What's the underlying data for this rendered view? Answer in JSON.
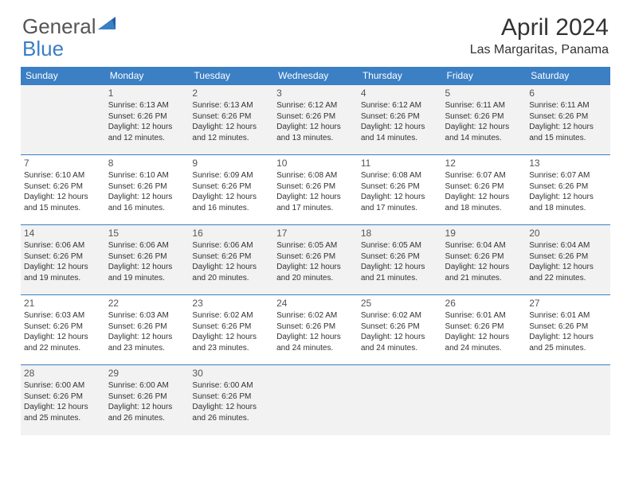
{
  "brand": {
    "part1": "General",
    "part2": "Blue"
  },
  "title": "April 2024",
  "location": "Las Margaritas, Panama",
  "colors": {
    "header_bg": "#3b7fc4",
    "header_text": "#ffffff",
    "rule": "#3b7fc4",
    "shade_bg": "#f2f2f2",
    "text": "#333333"
  },
  "weekdays": [
    "Sunday",
    "Monday",
    "Tuesday",
    "Wednesday",
    "Thursday",
    "Friday",
    "Saturday"
  ],
  "weeks": [
    [
      null,
      {
        "n": "1",
        "sr": "Sunrise: 6:13 AM",
        "ss": "Sunset: 6:26 PM",
        "d1": "Daylight: 12 hours",
        "d2": "and 12 minutes."
      },
      {
        "n": "2",
        "sr": "Sunrise: 6:13 AM",
        "ss": "Sunset: 6:26 PM",
        "d1": "Daylight: 12 hours",
        "d2": "and 12 minutes."
      },
      {
        "n": "3",
        "sr": "Sunrise: 6:12 AM",
        "ss": "Sunset: 6:26 PM",
        "d1": "Daylight: 12 hours",
        "d2": "and 13 minutes."
      },
      {
        "n": "4",
        "sr": "Sunrise: 6:12 AM",
        "ss": "Sunset: 6:26 PM",
        "d1": "Daylight: 12 hours",
        "d2": "and 14 minutes."
      },
      {
        "n": "5",
        "sr": "Sunrise: 6:11 AM",
        "ss": "Sunset: 6:26 PM",
        "d1": "Daylight: 12 hours",
        "d2": "and 14 minutes."
      },
      {
        "n": "6",
        "sr": "Sunrise: 6:11 AM",
        "ss": "Sunset: 6:26 PM",
        "d1": "Daylight: 12 hours",
        "d2": "and 15 minutes."
      }
    ],
    [
      {
        "n": "7",
        "sr": "Sunrise: 6:10 AM",
        "ss": "Sunset: 6:26 PM",
        "d1": "Daylight: 12 hours",
        "d2": "and 15 minutes."
      },
      {
        "n": "8",
        "sr": "Sunrise: 6:10 AM",
        "ss": "Sunset: 6:26 PM",
        "d1": "Daylight: 12 hours",
        "d2": "and 16 minutes."
      },
      {
        "n": "9",
        "sr": "Sunrise: 6:09 AM",
        "ss": "Sunset: 6:26 PM",
        "d1": "Daylight: 12 hours",
        "d2": "and 16 minutes."
      },
      {
        "n": "10",
        "sr": "Sunrise: 6:08 AM",
        "ss": "Sunset: 6:26 PM",
        "d1": "Daylight: 12 hours",
        "d2": "and 17 minutes."
      },
      {
        "n": "11",
        "sr": "Sunrise: 6:08 AM",
        "ss": "Sunset: 6:26 PM",
        "d1": "Daylight: 12 hours",
        "d2": "and 17 minutes."
      },
      {
        "n": "12",
        "sr": "Sunrise: 6:07 AM",
        "ss": "Sunset: 6:26 PM",
        "d1": "Daylight: 12 hours",
        "d2": "and 18 minutes."
      },
      {
        "n": "13",
        "sr": "Sunrise: 6:07 AM",
        "ss": "Sunset: 6:26 PM",
        "d1": "Daylight: 12 hours",
        "d2": "and 18 minutes."
      }
    ],
    [
      {
        "n": "14",
        "sr": "Sunrise: 6:06 AM",
        "ss": "Sunset: 6:26 PM",
        "d1": "Daylight: 12 hours",
        "d2": "and 19 minutes."
      },
      {
        "n": "15",
        "sr": "Sunrise: 6:06 AM",
        "ss": "Sunset: 6:26 PM",
        "d1": "Daylight: 12 hours",
        "d2": "and 19 minutes."
      },
      {
        "n": "16",
        "sr": "Sunrise: 6:06 AM",
        "ss": "Sunset: 6:26 PM",
        "d1": "Daylight: 12 hours",
        "d2": "and 20 minutes."
      },
      {
        "n": "17",
        "sr": "Sunrise: 6:05 AM",
        "ss": "Sunset: 6:26 PM",
        "d1": "Daylight: 12 hours",
        "d2": "and 20 minutes."
      },
      {
        "n": "18",
        "sr": "Sunrise: 6:05 AM",
        "ss": "Sunset: 6:26 PM",
        "d1": "Daylight: 12 hours",
        "d2": "and 21 minutes."
      },
      {
        "n": "19",
        "sr": "Sunrise: 6:04 AM",
        "ss": "Sunset: 6:26 PM",
        "d1": "Daylight: 12 hours",
        "d2": "and 21 minutes."
      },
      {
        "n": "20",
        "sr": "Sunrise: 6:04 AM",
        "ss": "Sunset: 6:26 PM",
        "d1": "Daylight: 12 hours",
        "d2": "and 22 minutes."
      }
    ],
    [
      {
        "n": "21",
        "sr": "Sunrise: 6:03 AM",
        "ss": "Sunset: 6:26 PM",
        "d1": "Daylight: 12 hours",
        "d2": "and 22 minutes."
      },
      {
        "n": "22",
        "sr": "Sunrise: 6:03 AM",
        "ss": "Sunset: 6:26 PM",
        "d1": "Daylight: 12 hours",
        "d2": "and 23 minutes."
      },
      {
        "n": "23",
        "sr": "Sunrise: 6:02 AM",
        "ss": "Sunset: 6:26 PM",
        "d1": "Daylight: 12 hours",
        "d2": "and 23 minutes."
      },
      {
        "n": "24",
        "sr": "Sunrise: 6:02 AM",
        "ss": "Sunset: 6:26 PM",
        "d1": "Daylight: 12 hours",
        "d2": "and 24 minutes."
      },
      {
        "n": "25",
        "sr": "Sunrise: 6:02 AM",
        "ss": "Sunset: 6:26 PM",
        "d1": "Daylight: 12 hours",
        "d2": "and 24 minutes."
      },
      {
        "n": "26",
        "sr": "Sunrise: 6:01 AM",
        "ss": "Sunset: 6:26 PM",
        "d1": "Daylight: 12 hours",
        "d2": "and 24 minutes."
      },
      {
        "n": "27",
        "sr": "Sunrise: 6:01 AM",
        "ss": "Sunset: 6:26 PM",
        "d1": "Daylight: 12 hours",
        "d2": "and 25 minutes."
      }
    ],
    [
      {
        "n": "28",
        "sr": "Sunrise: 6:00 AM",
        "ss": "Sunset: 6:26 PM",
        "d1": "Daylight: 12 hours",
        "d2": "and 25 minutes."
      },
      {
        "n": "29",
        "sr": "Sunrise: 6:00 AM",
        "ss": "Sunset: 6:26 PM",
        "d1": "Daylight: 12 hours",
        "d2": "and 26 minutes."
      },
      {
        "n": "30",
        "sr": "Sunrise: 6:00 AM",
        "ss": "Sunset: 6:26 PM",
        "d1": "Daylight: 12 hours",
        "d2": "and 26 minutes."
      },
      null,
      null,
      null,
      null
    ]
  ],
  "shaded_weeks": [
    0,
    2,
    4
  ]
}
